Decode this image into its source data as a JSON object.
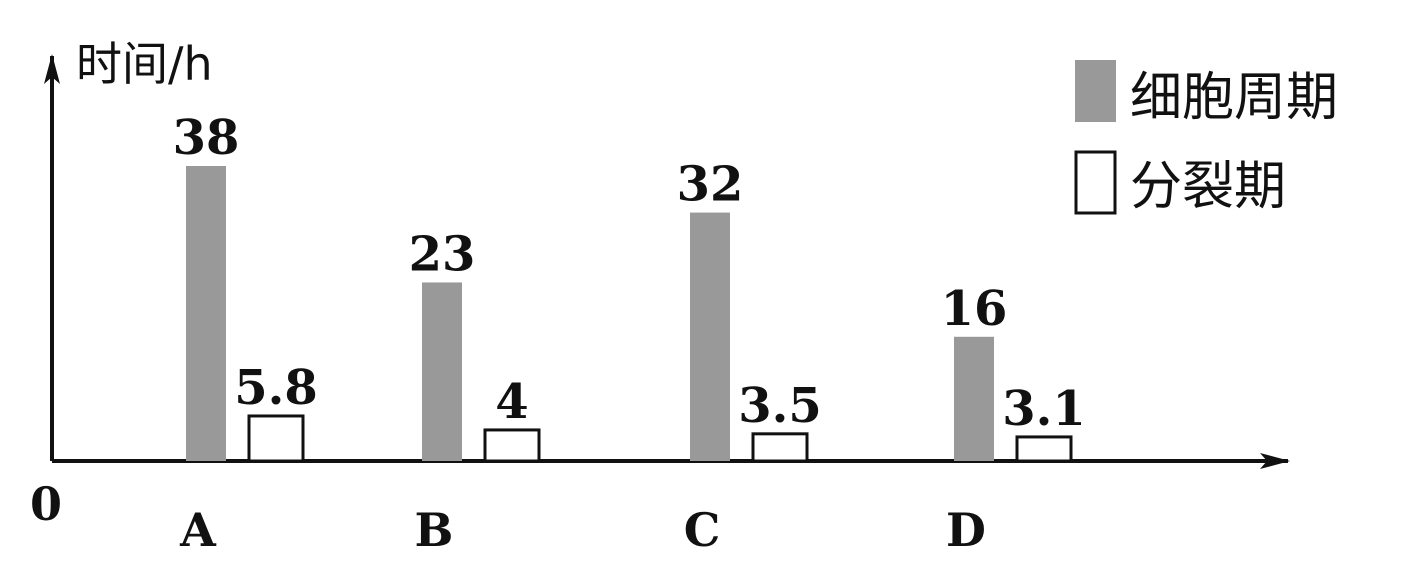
{
  "chart_data": {
    "type": "bar",
    "ylabel": "时间/h",
    "origin_label": "0",
    "categories": [
      "A",
      "B",
      "C",
      "D"
    ],
    "series": [
      {
        "name": "细胞周期",
        "values": [
          38,
          23,
          32,
          16
        ],
        "value_labels": [
          "38",
          "23",
          "32",
          "16"
        ],
        "color": "#999999",
        "outlined": false
      },
      {
        "name": "分裂期",
        "values": [
          5.8,
          4,
          3.5,
          3.1
        ],
        "value_labels": [
          "5.8",
          "4",
          "3.5",
          "3.1"
        ],
        "color": "#ffffff",
        "outlined": true
      }
    ],
    "legend_position": "top-right",
    "grid": false,
    "ylim": [
      0,
      38
    ]
  }
}
